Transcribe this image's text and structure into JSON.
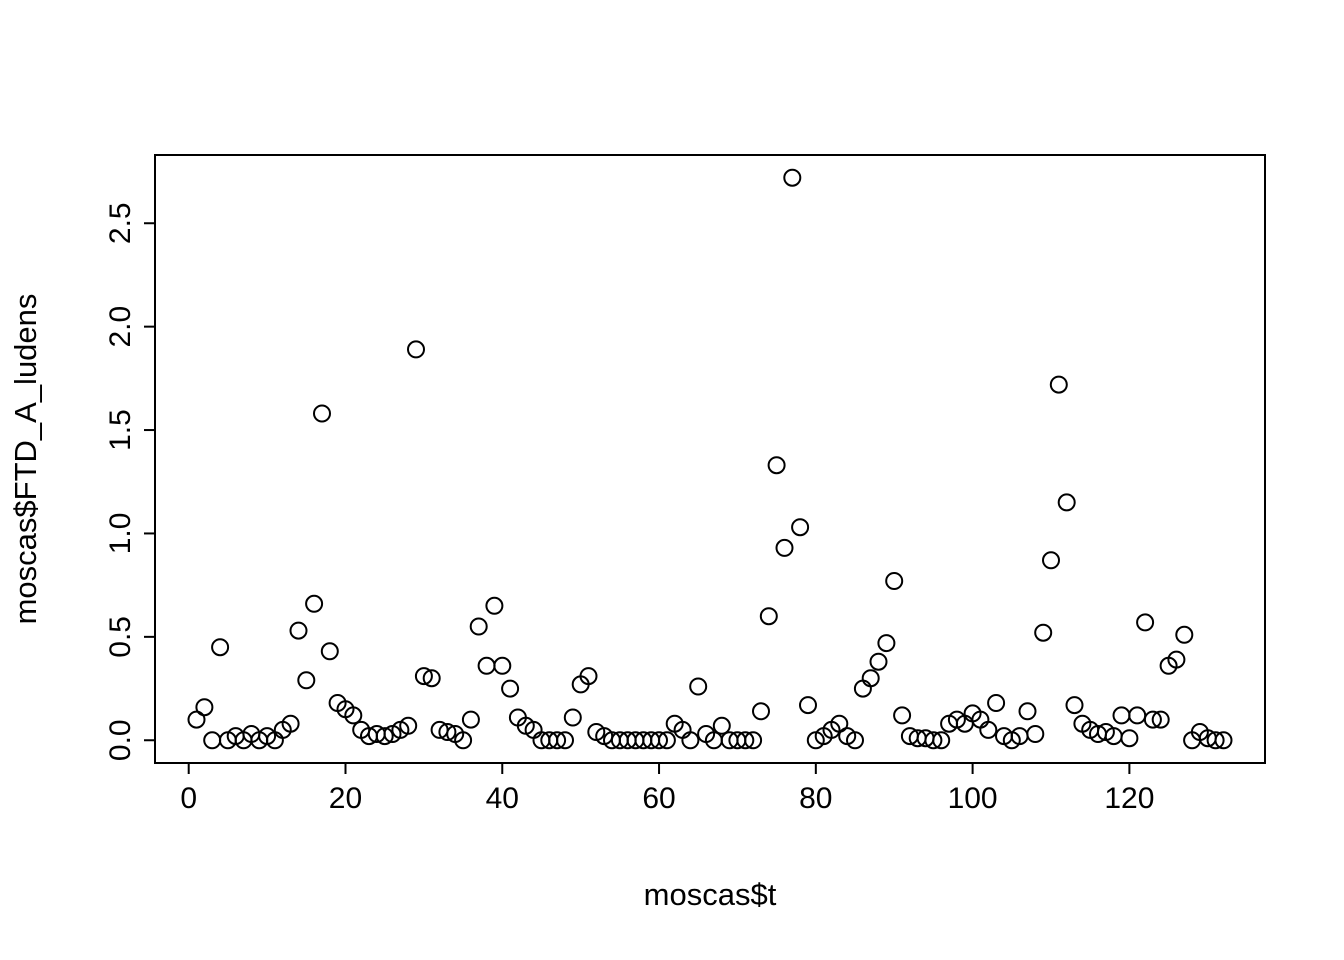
{
  "chart_data": {
    "type": "scatter",
    "title": "",
    "xlabel": "moscas$t",
    "ylabel": "moscas$FTD_A_ludens",
    "marker": "open-circle",
    "marker_color": "#000000",
    "grid": false,
    "legend": null,
    "xlim": [
      -4.3,
      137.3
    ],
    "ylim": [
      -0.11,
      2.83
    ],
    "x_ticks": [
      0,
      20,
      40,
      60,
      80,
      100,
      120
    ],
    "x_tick_labels": [
      "0",
      "20",
      "40",
      "60",
      "80",
      "100",
      "120"
    ],
    "y_ticks": [
      0.0,
      0.5,
      1.0,
      1.5,
      2.0,
      2.5
    ],
    "y_tick_labels": [
      "0.0",
      "0.5",
      "1.0",
      "1.5",
      "2.0",
      "2.5"
    ],
    "points": [
      [
        1,
        0.1
      ],
      [
        2,
        0.16
      ],
      [
        3,
        0.0
      ],
      [
        4,
        0.45
      ],
      [
        5,
        0.0
      ],
      [
        6,
        0.02
      ],
      [
        7,
        0.0
      ],
      [
        8,
        0.03
      ],
      [
        9,
        0.0
      ],
      [
        10,
        0.02
      ],
      [
        11,
        0.0
      ],
      [
        12,
        0.05
      ],
      [
        13,
        0.08
      ],
      [
        14,
        0.53
      ],
      [
        15,
        0.29
      ],
      [
        16,
        0.66
      ],
      [
        17,
        1.58
      ],
      [
        18,
        0.43
      ],
      [
        19,
        0.18
      ],
      [
        20,
        0.15
      ],
      [
        21,
        0.12
      ],
      [
        22,
        0.05
      ],
      [
        23,
        0.02
      ],
      [
        24,
        0.03
      ],
      [
        25,
        0.02
      ],
      [
        26,
        0.03
      ],
      [
        27,
        0.05
      ],
      [
        28,
        0.07
      ],
      [
        29,
        1.89
      ],
      [
        30,
        0.31
      ],
      [
        31,
        0.3
      ],
      [
        32,
        0.05
      ],
      [
        33,
        0.04
      ],
      [
        34,
        0.03
      ],
      [
        35,
        0.0
      ],
      [
        36,
        0.1
      ],
      [
        37,
        0.55
      ],
      [
        38,
        0.36
      ],
      [
        39,
        0.65
      ],
      [
        40,
        0.36
      ],
      [
        41,
        0.25
      ],
      [
        42,
        0.11
      ],
      [
        43,
        0.07
      ],
      [
        44,
        0.05
      ],
      [
        45,
        0.0
      ],
      [
        46,
        0.0
      ],
      [
        47,
        0.0
      ],
      [
        48,
        0.0
      ],
      [
        49,
        0.11
      ],
      [
        50,
        0.27
      ],
      [
        51,
        0.31
      ],
      [
        52,
        0.04
      ],
      [
        53,
        0.02
      ],
      [
        54,
        0.0
      ],
      [
        55,
        0.0
      ],
      [
        56,
        0.0
      ],
      [
        57,
        0.0
      ],
      [
        58,
        0.0
      ],
      [
        59,
        0.0
      ],
      [
        60,
        0.0
      ],
      [
        61,
        0.0
      ],
      [
        62,
        0.08
      ],
      [
        63,
        0.05
      ],
      [
        64,
        0.0
      ],
      [
        65,
        0.26
      ],
      [
        66,
        0.03
      ],
      [
        67,
        0.0
      ],
      [
        68,
        0.07
      ],
      [
        69,
        0.0
      ],
      [
        70,
        0.0
      ],
      [
        71,
        0.0
      ],
      [
        72,
        0.0
      ],
      [
        73,
        0.14
      ],
      [
        74,
        0.6
      ],
      [
        75,
        1.33
      ],
      [
        76,
        0.93
      ],
      [
        77,
        2.72
      ],
      [
        78,
        1.03
      ],
      [
        79,
        0.17
      ],
      [
        80,
        0.0
      ],
      [
        81,
        0.02
      ],
      [
        82,
        0.05
      ],
      [
        83,
        0.08
      ],
      [
        84,
        0.02
      ],
      [
        85,
        0.0
      ],
      [
        86,
        0.25
      ],
      [
        87,
        0.3
      ],
      [
        88,
        0.38
      ],
      [
        89,
        0.47
      ],
      [
        90,
        0.77
      ],
      [
        91,
        0.12
      ],
      [
        92,
        0.02
      ],
      [
        93,
        0.01
      ],
      [
        94,
        0.01
      ],
      [
        95,
        0.0
      ],
      [
        96,
        0.0
      ],
      [
        97,
        0.08
      ],
      [
        98,
        0.1
      ],
      [
        99,
        0.08
      ],
      [
        100,
        0.13
      ],
      [
        101,
        0.1
      ],
      [
        102,
        0.05
      ],
      [
        103,
        0.18
      ],
      [
        104,
        0.02
      ],
      [
        105,
        0.0
      ],
      [
        106,
        0.02
      ],
      [
        107,
        0.14
      ],
      [
        108,
        0.03
      ],
      [
        109,
        0.52
      ],
      [
        110,
        0.87
      ],
      [
        111,
        1.72
      ],
      [
        112,
        1.15
      ],
      [
        113,
        0.17
      ],
      [
        114,
        0.08
      ],
      [
        115,
        0.05
      ],
      [
        116,
        0.03
      ],
      [
        117,
        0.04
      ],
      [
        118,
        0.02
      ],
      [
        119,
        0.12
      ],
      [
        120,
        0.01
      ],
      [
        121,
        0.12
      ],
      [
        122,
        0.57
      ],
      [
        123,
        0.1
      ],
      [
        124,
        0.1
      ],
      [
        125,
        0.36
      ],
      [
        126,
        0.39
      ],
      [
        127,
        0.51
      ],
      [
        128,
        0.0
      ],
      [
        129,
        0.04
      ],
      [
        130,
        0.01
      ],
      [
        131,
        0.0
      ],
      [
        132,
        0.0
      ]
    ]
  },
  "colors": {
    "background": "#ffffff",
    "axis": "#000000",
    "points": "#000000"
  }
}
